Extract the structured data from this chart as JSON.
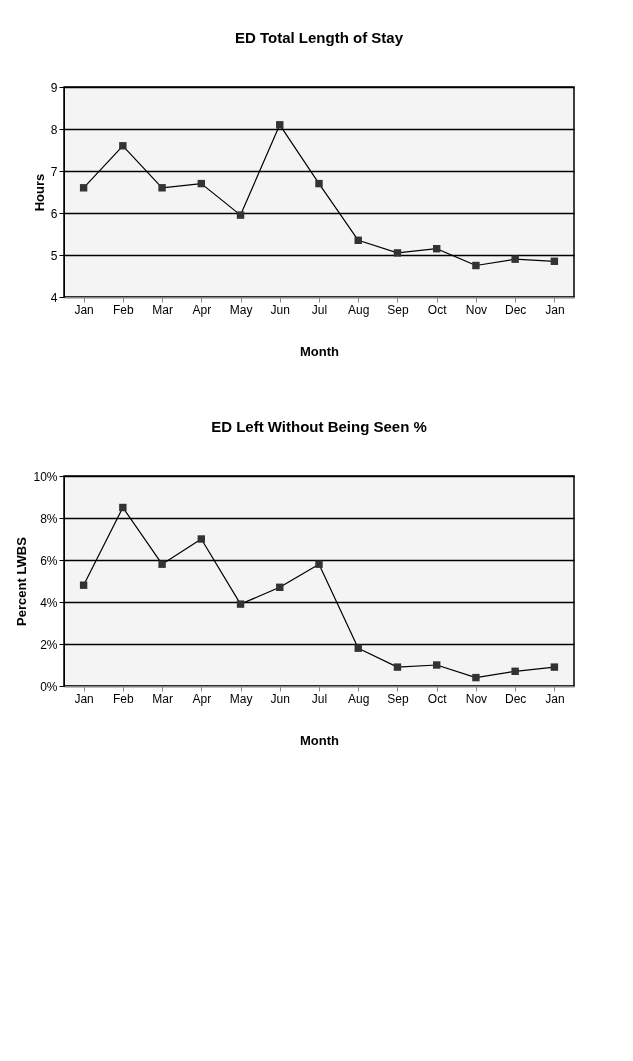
{
  "chart_data": [
    {
      "type": "line",
      "title": "ED Total Length of Stay",
      "xlabel": "Month",
      "ylabel": "Hours",
      "categories": [
        "Jan",
        "Feb",
        "Mar",
        "Apr",
        "May",
        "Jun",
        "Jul",
        "Aug",
        "Sep",
        "Oct",
        "Nov",
        "Dec",
        "Jan"
      ],
      "series": [
        {
          "color": "#333333",
          "values": [
            6.6,
            7.6,
            6.6,
            6.7,
            5.95,
            8.1,
            6.7,
            5.35,
            5.05,
            5.15,
            4.75,
            4.9,
            4.85
          ]
        }
      ],
      "ylim": [
        4,
        9
      ],
      "yticks": [
        4,
        5,
        6,
        7,
        8,
        9
      ],
      "grid": "y",
      "marker": "square",
      "line_style": "solid",
      "legend": false
    },
    {
      "type": "line",
      "title": "ED Left Without Being Seen %",
      "xlabel": "Month",
      "ylabel": "Percent LWBS",
      "categories": [
        "Jan",
        "Feb",
        "Mar",
        "Apr",
        "May",
        "Jun",
        "Jul",
        "Aug",
        "Sep",
        "Oct",
        "Nov",
        "Dec",
        "Jan"
      ],
      "series": [
        {
          "color": "#333333",
          "values": [
            4.8,
            8.5,
            5.8,
            7.0,
            3.9,
            4.7,
            5.8,
            1.8,
            0.9,
            1.0,
            0.4,
            0.7,
            0.9
          ]
        }
      ],
      "ylim": [
        0,
        10
      ],
      "yticks": [
        {
          "value": 0,
          "label": "0%"
        },
        {
          "value": 2,
          "label": "2%"
        },
        {
          "value": 4,
          "label": "4%"
        },
        {
          "value": 6,
          "label": "6%"
        },
        {
          "value": 8,
          "label": "8%"
        },
        {
          "value": 10,
          "label": "10%"
        }
      ],
      "grid": "y",
      "marker": "square",
      "line_style": "solid",
      "legend": false
    }
  ]
}
